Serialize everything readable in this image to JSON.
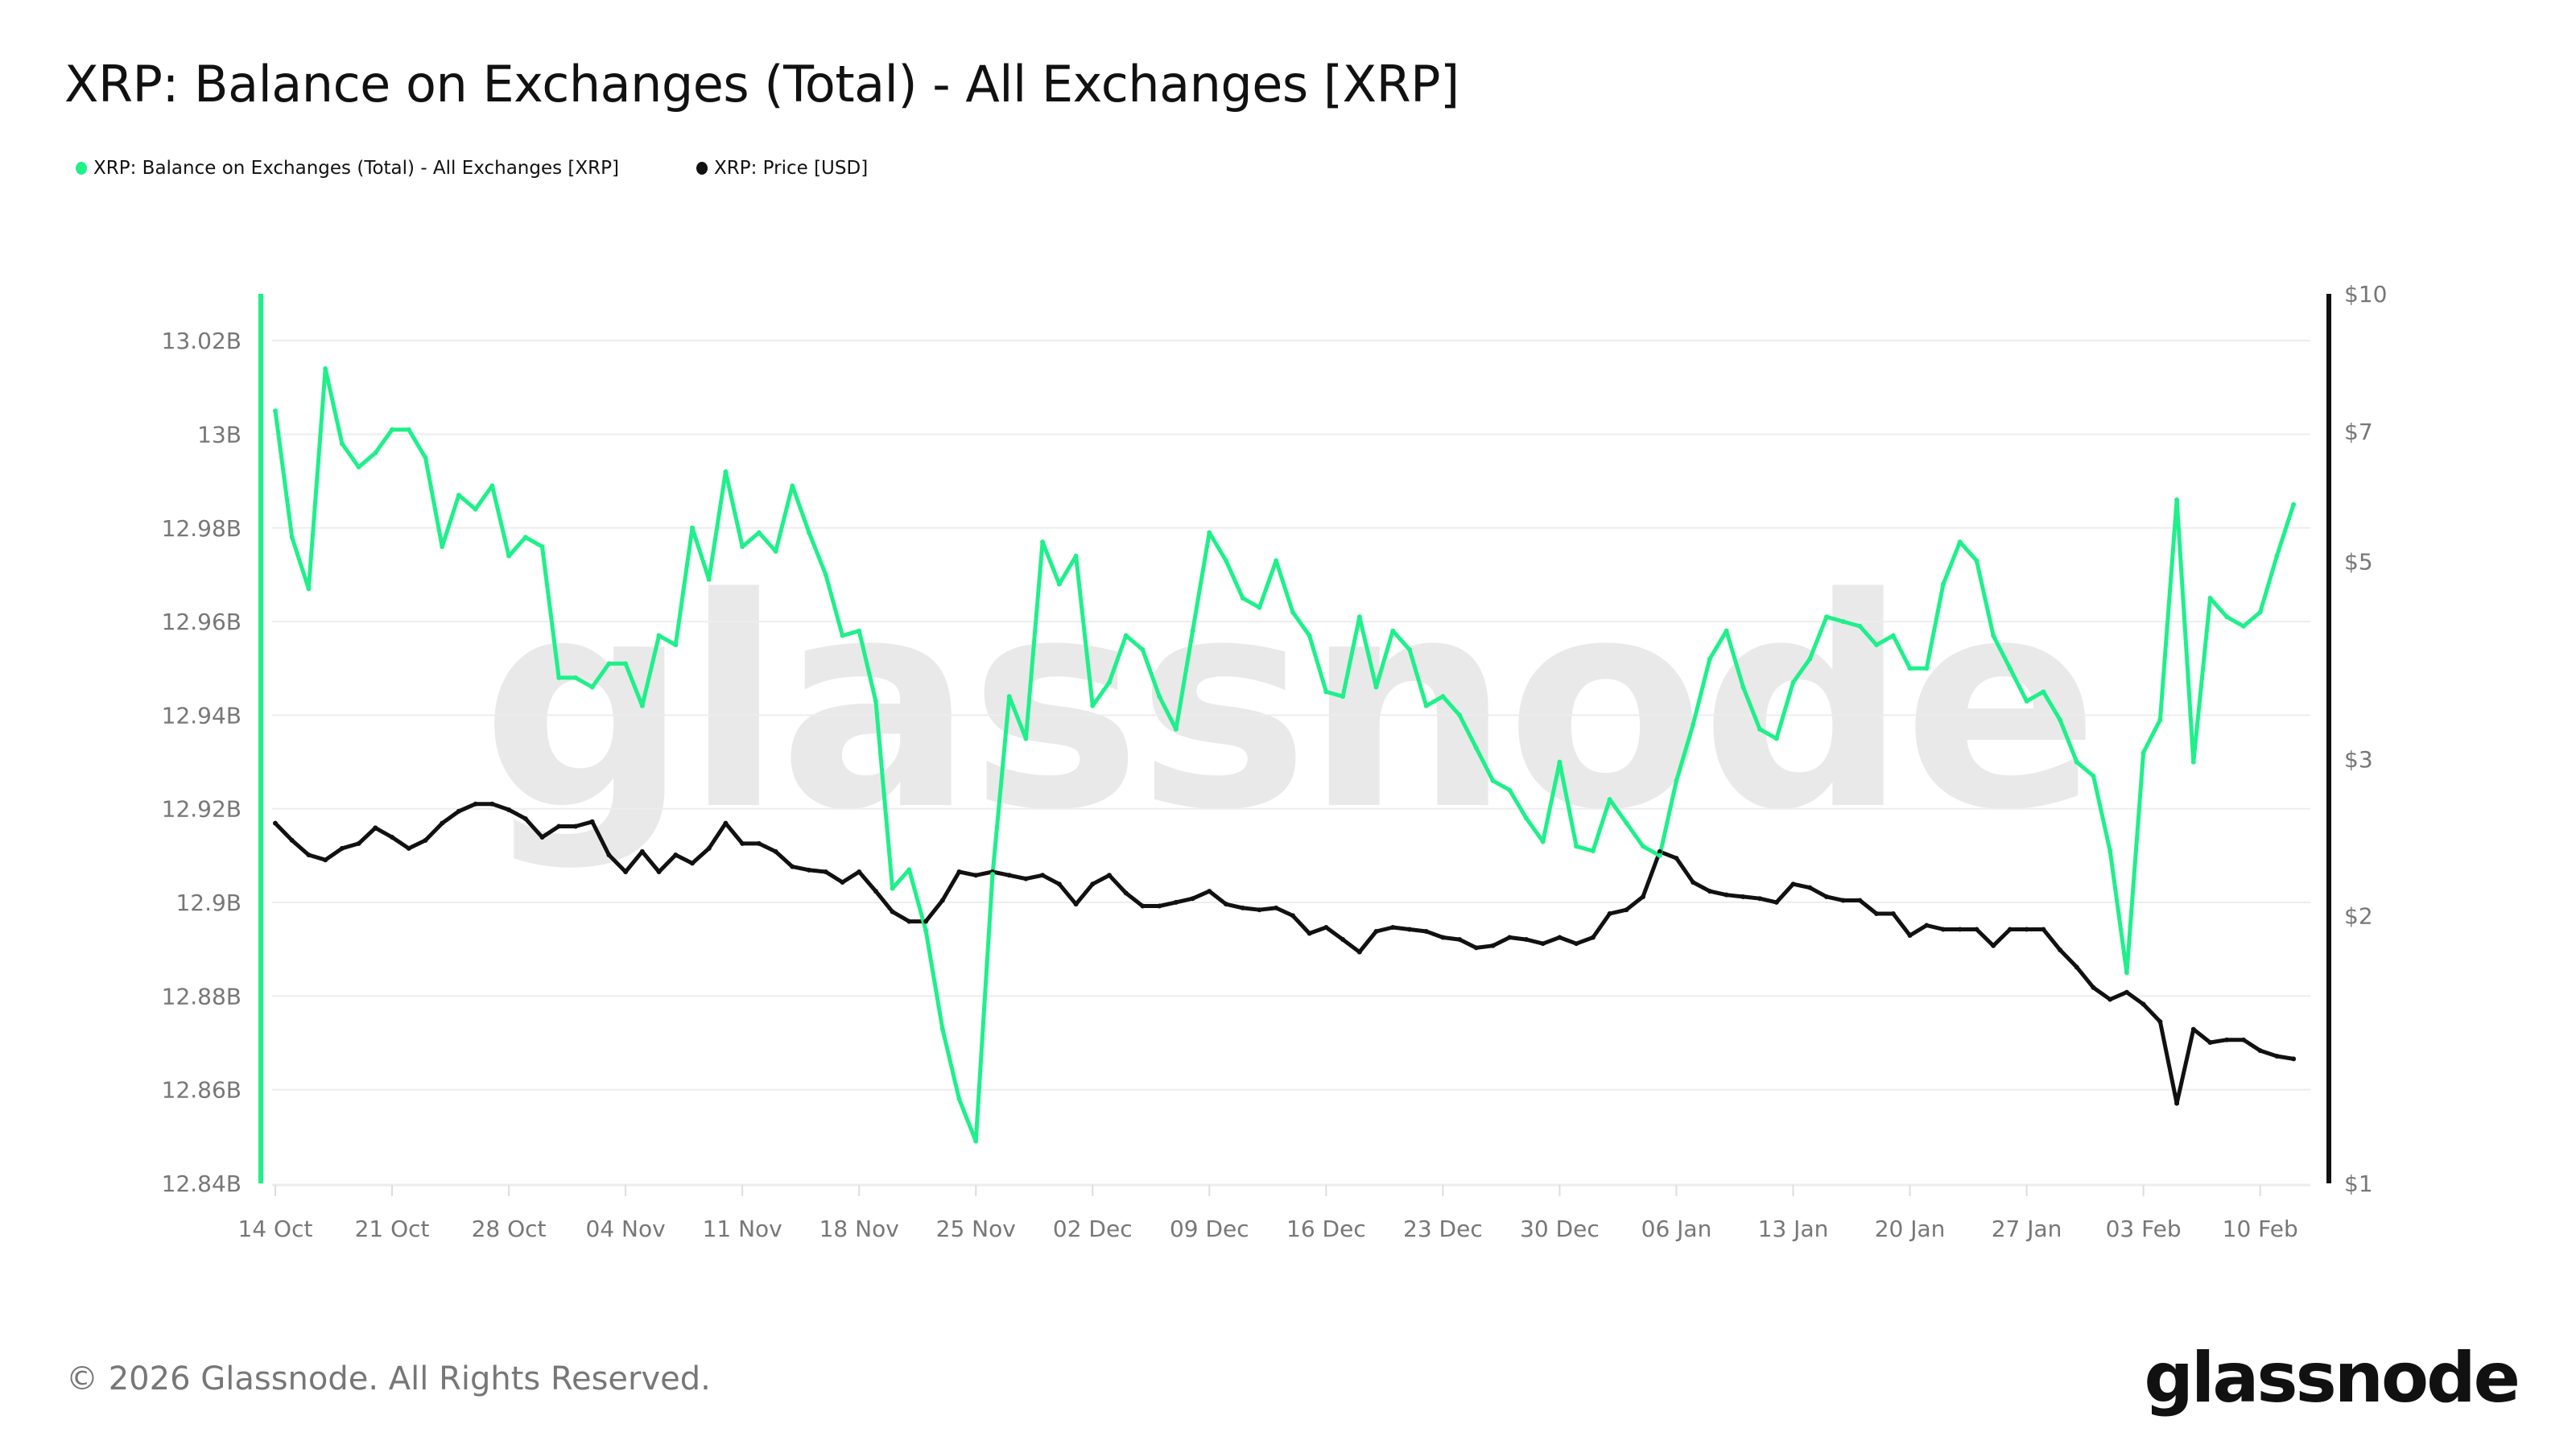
{
  "title": "XRP: Balance on Exchanges (Total) - All Exchanges [XRP]",
  "footer": "© 2026 Glassnode. All Rights Reserved.",
  "logo": "glassnode",
  "watermark": "glassnode",
  "colors": {
    "balance": "#1ef08a",
    "price": "#111111",
    "grid": "#ededed"
  },
  "chart_data": {
    "type": "line",
    "title": "XRP: Balance on Exchanges (Total) - All Exchanges [XRP]",
    "legend_position": "top-left",
    "grid": true,
    "x": [
      "14 Oct",
      "15 Oct",
      "16 Oct",
      "17 Oct",
      "18 Oct",
      "19 Oct",
      "20 Oct",
      "21 Oct",
      "22 Oct",
      "23 Oct",
      "24 Oct",
      "25 Oct",
      "26 Oct",
      "27 Oct",
      "28 Oct",
      "29 Oct",
      "30 Oct",
      "31 Oct",
      "01 Nov",
      "02 Nov",
      "03 Nov",
      "04 Nov",
      "05 Nov",
      "06 Nov",
      "07 Nov",
      "08 Nov",
      "09 Nov",
      "10 Nov",
      "11 Nov",
      "12 Nov",
      "13 Nov",
      "14 Nov",
      "15 Nov",
      "16 Nov",
      "17 Nov",
      "18 Nov",
      "19 Nov",
      "20 Nov",
      "21 Nov",
      "22 Nov",
      "23 Nov",
      "24 Nov",
      "25 Nov",
      "26 Nov",
      "27 Nov",
      "28 Nov",
      "29 Nov",
      "30 Nov",
      "01 Dec",
      "02 Dec",
      "03 Dec",
      "04 Dec",
      "05 Dec",
      "06 Dec",
      "07 Dec",
      "08 Dec",
      "09 Dec",
      "10 Dec",
      "11 Dec",
      "12 Dec",
      "13 Dec",
      "14 Dec",
      "15 Dec",
      "16 Dec",
      "17 Dec",
      "18 Dec",
      "19 Dec",
      "20 Dec",
      "21 Dec",
      "22 Dec",
      "23 Dec",
      "24 Dec",
      "25 Dec",
      "26 Dec",
      "27 Dec",
      "28 Dec",
      "29 Dec",
      "30 Dec",
      "31 Dec",
      "01 Jan",
      "02 Jan",
      "03 Jan",
      "04 Jan",
      "05 Jan",
      "06 Jan",
      "07 Jan",
      "08 Jan",
      "09 Jan",
      "10 Jan",
      "11 Jan",
      "12 Jan",
      "13 Jan",
      "14 Jan",
      "15 Jan",
      "16 Jan",
      "17 Jan",
      "18 Jan",
      "19 Jan",
      "20 Jan",
      "21 Jan",
      "22 Jan",
      "23 Jan",
      "24 Jan",
      "25 Jan",
      "26 Jan",
      "27 Jan",
      "28 Jan",
      "29 Jan",
      "30 Jan",
      "31 Jan",
      "01 Feb",
      "02 Feb",
      "03 Feb",
      "04 Feb",
      "05 Feb",
      "06 Feb",
      "07 Feb",
      "08 Feb",
      "09 Feb",
      "10 Feb",
      "11 Feb",
      "12 Feb"
    ],
    "x_ticks": [
      "14 Oct",
      "21 Oct",
      "28 Oct",
      "04 Nov",
      "11 Nov",
      "18 Nov",
      "25 Nov",
      "02 Dec",
      "09 Dec",
      "16 Dec",
      "23 Dec",
      "30 Dec",
      "06 Jan",
      "13 Jan",
      "20 Jan",
      "27 Jan",
      "03 Feb",
      "10 Feb"
    ],
    "y_left": {
      "unit": "B",
      "range": [
        12.84,
        13.03
      ],
      "ticks": [
        12.84,
        12.86,
        12.88,
        12.9,
        12.92,
        12.94,
        12.96,
        12.98,
        13,
        13.02
      ],
      "tick_labels": [
        "12.84B",
        "12.86B",
        "12.88B",
        "12.9B",
        "12.92B",
        "12.94B",
        "12.96B",
        "12.98B",
        "13B",
        "13.02B"
      ]
    },
    "y_right": {
      "scale": "log",
      "range": [
        1,
        10
      ],
      "ticks": [
        1,
        2,
        3,
        5,
        7,
        10
      ],
      "tick_labels": [
        "$1",
        "$2",
        "$3",
        "$5",
        "$7",
        "$10"
      ]
    },
    "series": [
      {
        "name": "XRP: Balance on Exchanges (Total) - All Exchanges [XRP]",
        "axis": "left",
        "unit": "billion XRP",
        "values": [
          13.005,
          12.978,
          12.967,
          13.014,
          12.998,
          12.993,
          12.996,
          13.001,
          13.001,
          12.995,
          12.976,
          12.987,
          12.984,
          12.989,
          12.974,
          12.978,
          12.976,
          12.948,
          12.948,
          12.946,
          12.951,
          12.951,
          12.942,
          12.957,
          12.955,
          12.98,
          12.969,
          12.992,
          12.976,
          12.979,
          12.975,
          12.989,
          12.979,
          12.97,
          12.957,
          12.958,
          12.943,
          12.903,
          12.907,
          12.894,
          12.873,
          12.858,
          12.849,
          12.906,
          12.944,
          12.935,
          12.977,
          12.968,
          12.974,
          12.942,
          12.947,
          12.957,
          12.954,
          12.944,
          12.937,
          12.958,
          12.979,
          12.973,
          12.965,
          12.963,
          12.973,
          12.962,
          12.957,
          12.945,
          12.944,
          12.961,
          12.946,
          12.958,
          12.954,
          12.942,
          12.944,
          12.94,
          12.933,
          12.926,
          12.924,
          12.918,
          12.913,
          12.93,
          12.912,
          12.911,
          12.922,
          12.917,
          12.912,
          12.91,
          12.926,
          12.938,
          12.952,
          12.958,
          12.946,
          12.937,
          12.935,
          12.947,
          12.952,
          12.961,
          12.96,
          12.959,
          12.955,
          12.957,
          12.95,
          12.95,
          12.968,
          12.977,
          12.973,
          12.957,
          12.95,
          12.943,
          12.945,
          12.939,
          12.93,
          12.927,
          12.911,
          12.885,
          12.932,
          12.939,
          12.986,
          12.93,
          12.965,
          12.961,
          12.959,
          12.962,
          12.974,
          12.985
        ]
      },
      {
        "name": "XRP: Price [USD]",
        "axis": "right",
        "unit": "USD",
        "values": [
          2.54,
          2.43,
          2.34,
          2.31,
          2.38,
          2.41,
          2.51,
          2.45,
          2.38,
          2.43,
          2.54,
          2.62,
          2.67,
          2.67,
          2.63,
          2.57,
          2.45,
          2.52,
          2.52,
          2.55,
          2.34,
          2.24,
          2.36,
          2.24,
          2.34,
          2.29,
          2.38,
          2.54,
          2.41,
          2.41,
          2.36,
          2.27,
          2.25,
          2.24,
          2.18,
          2.24,
          2.13,
          2.02,
          1.97,
          1.97,
          2.08,
          2.24,
          2.22,
          2.24,
          2.22,
          2.2,
          2.22,
          2.17,
          2.06,
          2.17,
          2.22,
          2.12,
          2.05,
          2.05,
          2.07,
          2.09,
          2.13,
          2.06,
          2.04,
          2.03,
          2.04,
          2.0,
          1.91,
          1.94,
          1.88,
          1.82,
          1.92,
          1.94,
          1.93,
          1.92,
          1.89,
          1.88,
          1.84,
          1.85,
          1.89,
          1.88,
          1.86,
          1.89,
          1.86,
          1.89,
          2.01,
          2.03,
          2.1,
          2.36,
          2.32,
          2.18,
          2.13,
          2.11,
          2.1,
          2.09,
          2.07,
          2.17,
          2.15,
          2.1,
          2.08,
          2.08,
          2.01,
          2.01,
          1.9,
          1.95,
          1.93,
          1.93,
          1.93,
          1.85,
          1.93,
          1.93,
          1.93,
          1.83,
          1.75,
          1.66,
          1.61,
          1.64,
          1.59,
          1.52,
          1.23,
          1.49,
          1.44,
          1.45,
          1.45,
          1.41,
          1.39,
          1.38
        ]
      }
    ]
  }
}
